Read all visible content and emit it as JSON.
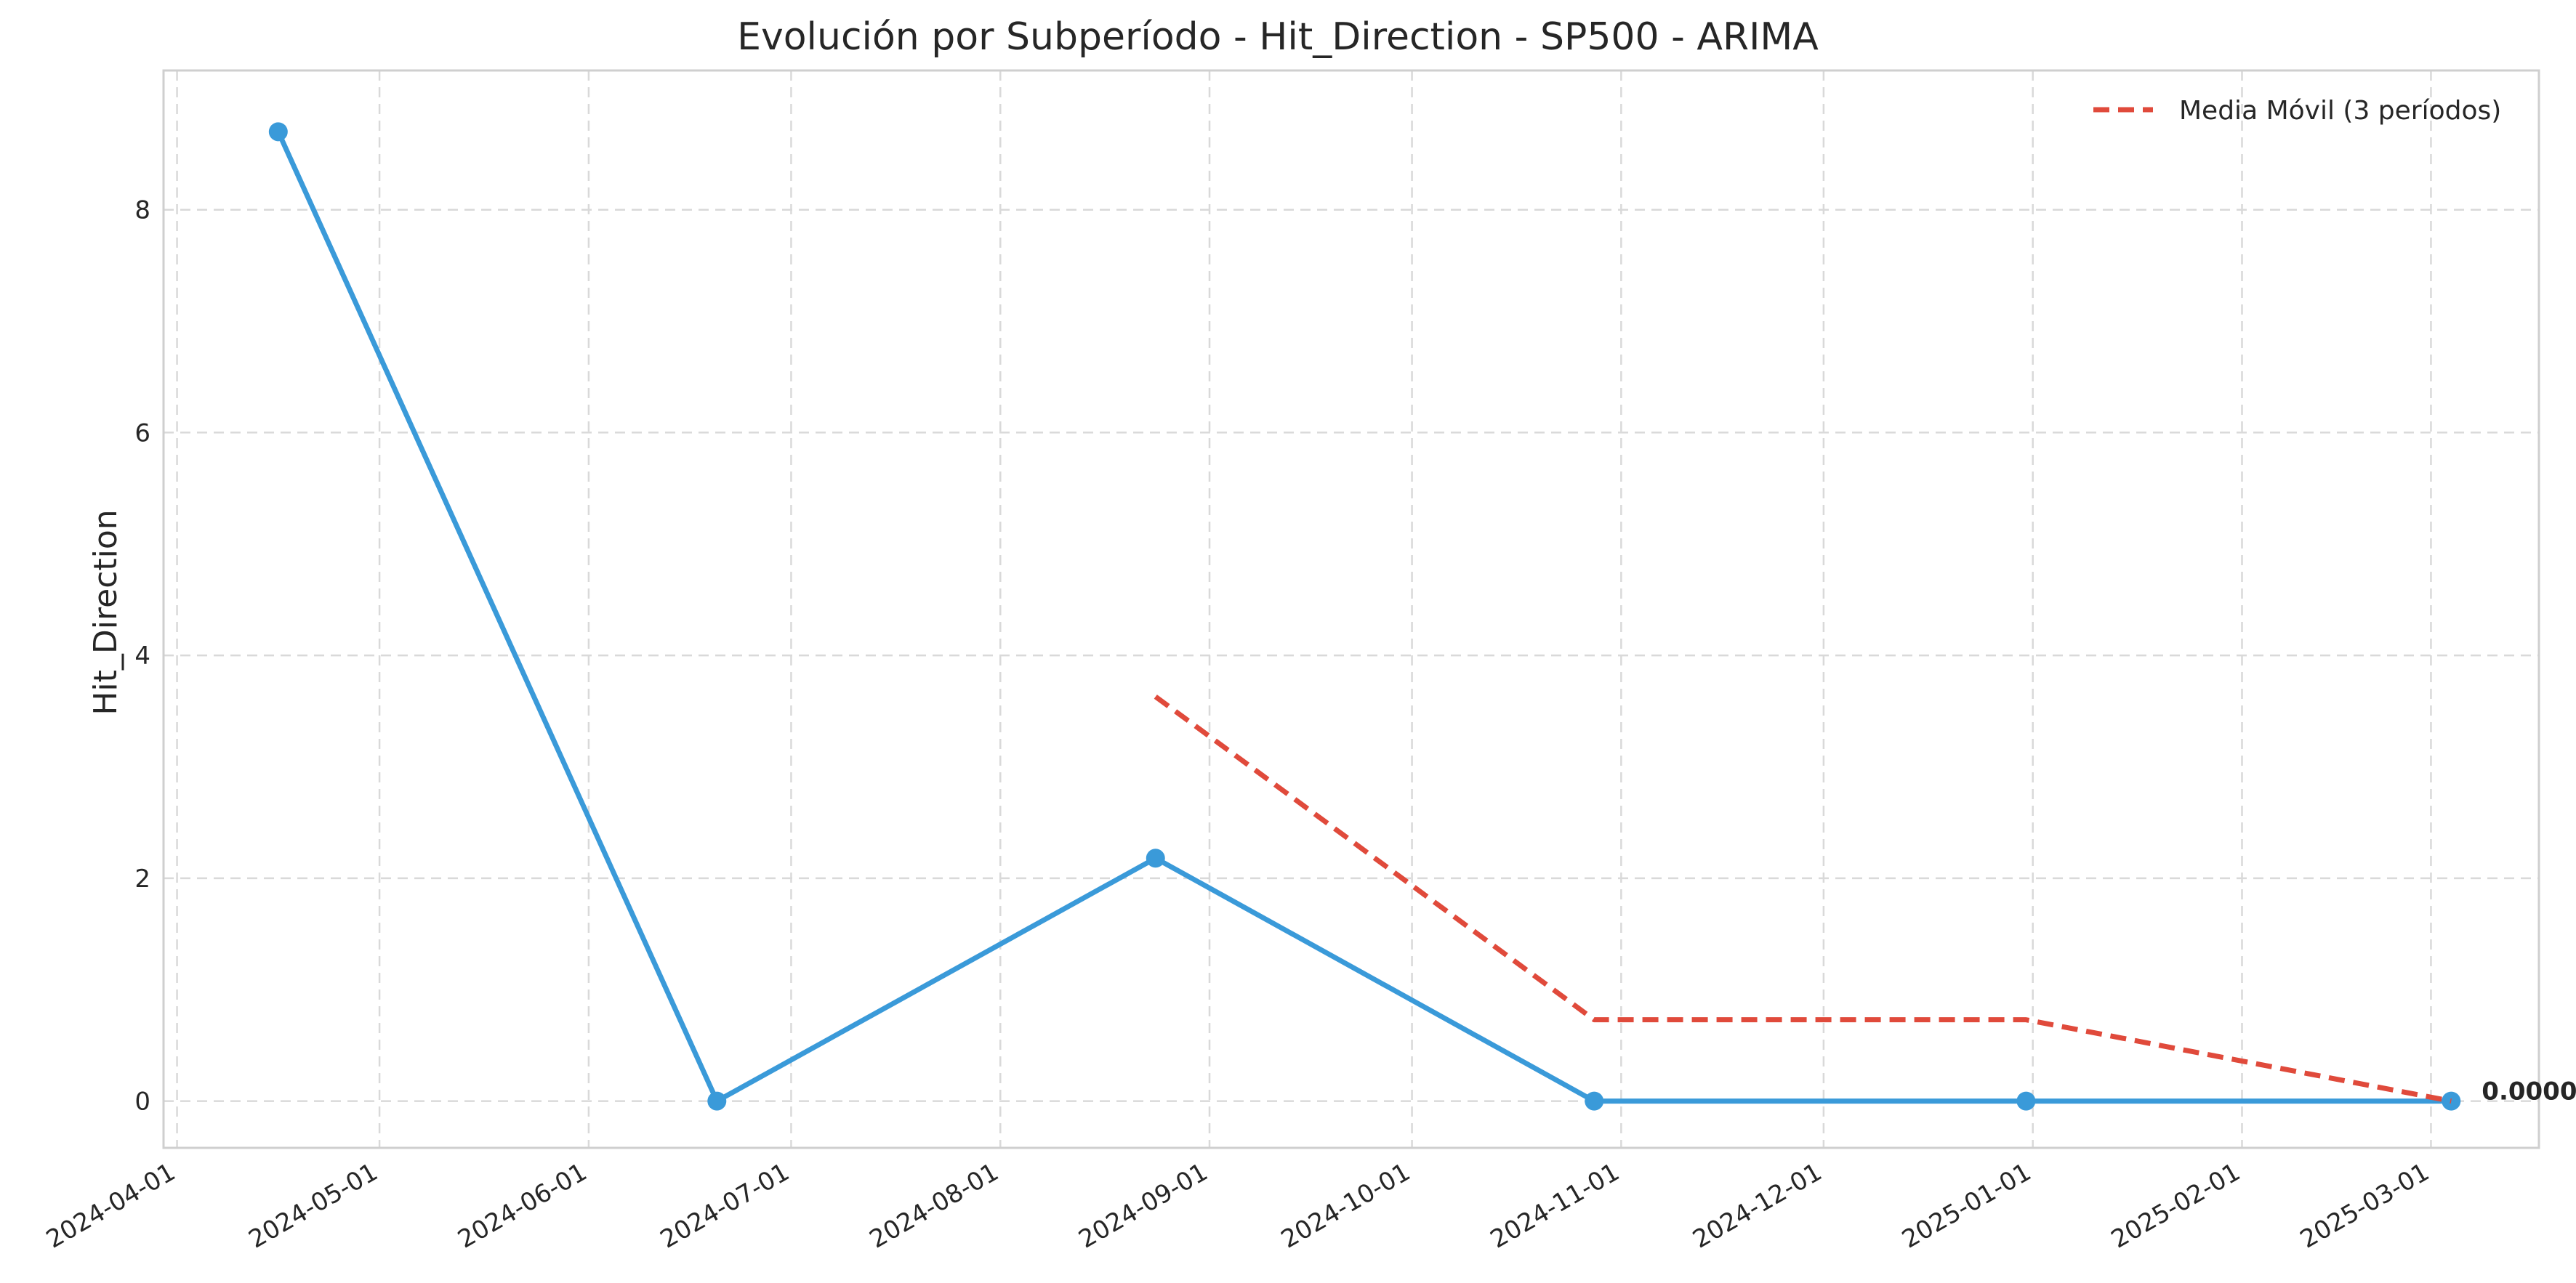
{
  "chart_data": {
    "type": "line",
    "title": "Evolución por Subperíodo - Hit_Direction - SP500 - ARIMA",
    "xlabel": "",
    "ylabel": "Hit_Direction",
    "x_axis": "date",
    "xlim": [
      "2024-03-30",
      "2025-03-17"
    ],
    "ylim": [
      -0.42,
      9.25
    ],
    "x_ticks": [
      "2024-04-01",
      "2024-05-01",
      "2024-06-01",
      "2024-07-01",
      "2024-08-01",
      "2024-09-01",
      "2024-10-01",
      "2024-11-01",
      "2024-12-01",
      "2025-01-01",
      "2025-02-01",
      "2025-03-01"
    ],
    "y_ticks": [
      0,
      2,
      4,
      6,
      8
    ],
    "y_tick_labels": [
      "0",
      "2",
      "4",
      "6",
      "8"
    ],
    "grid": true,
    "legend_position": "top-right",
    "series": [
      {
        "name": "",
        "color": "#3a9ad9",
        "style": "solid",
        "markers": true,
        "x": [
          "2024-04-16",
          "2024-06-20",
          "2024-08-24",
          "2024-10-28",
          "2024-12-31",
          "2025-03-04"
        ],
        "values": [
          8.7,
          0.0,
          2.18,
          0.0,
          0.0,
          0.0
        ]
      },
      {
        "name": "Media Móvil (3 períodos)",
        "color": "#e04a3b",
        "style": "dashed",
        "markers": false,
        "x": [
          "2024-08-24",
          "2024-10-28",
          "2024-12-31",
          "2025-03-04"
        ],
        "values": [
          3.63,
          0.73,
          0.73,
          0.0
        ]
      }
    ],
    "annotations": [
      {
        "text": "0.0000",
        "x": "2025-03-04",
        "y": 0.0
      }
    ]
  }
}
